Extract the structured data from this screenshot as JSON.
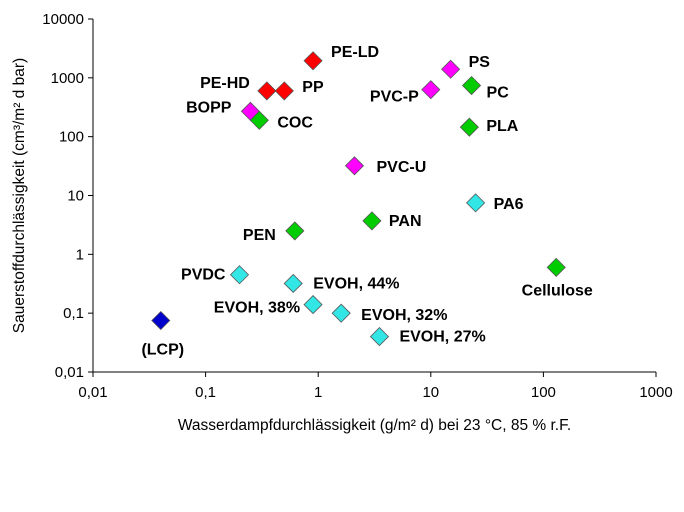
{
  "chart_data": {
    "type": "scatter",
    "xlabel": "Wasserdampfdurchlässigkeit (g/m² d) bei 23 °C, 85 % r.F.",
    "ylabel": "Sauerstoffdurchlässigkeit (cm³/m² d bar)",
    "x_scale": "log",
    "y_scale": "log",
    "xlim": [
      0.01,
      1000
    ],
    "ylim": [
      0.01,
      10000
    ],
    "grid": false,
    "x_ticks": [
      "0,01",
      "0,1",
      "1",
      "10",
      "100",
      "1000"
    ],
    "y_ticks": [
      "0,01",
      "0,1",
      "1",
      "10",
      "100",
      "1000",
      "10000"
    ],
    "colors": {
      "red": "#ff0000",
      "magenta": "#ff00ff",
      "green": "#00cc00",
      "cyan": "#33e6e6",
      "blue": "#0000cc"
    },
    "points": [
      {
        "label": "PE-LD",
        "x": 0.9,
        "y": 1950,
        "color": "red"
      },
      {
        "label": "PE-HD",
        "x": 0.35,
        "y": 600,
        "color": "red"
      },
      {
        "label": "PP",
        "x": 0.5,
        "y": 600,
        "color": "red"
      },
      {
        "label": "BOPP",
        "x": 0.25,
        "y": 270,
        "color": "magenta"
      },
      {
        "label": "COC",
        "x": 0.3,
        "y": 190,
        "color": "green"
      },
      {
        "label": "PS",
        "x": 15,
        "y": 1400,
        "color": "magenta"
      },
      {
        "label": "PVC-P",
        "x": 10,
        "y": 630,
        "color": "magenta"
      },
      {
        "label": "PC",
        "x": 23,
        "y": 740,
        "color": "green"
      },
      {
        "label": "PLA",
        "x": 22,
        "y": 145,
        "color": "green"
      },
      {
        "label": "PVC-U",
        "x": 2.1,
        "y": 32,
        "color": "magenta"
      },
      {
        "label": "PA6",
        "x": 25,
        "y": 7.5,
        "color": "cyan"
      },
      {
        "label": "PAN",
        "x": 3,
        "y": 3.7,
        "color": "green"
      },
      {
        "label": "PEN",
        "x": 0.62,
        "y": 2.5,
        "color": "green"
      },
      {
        "label": "Cellulose",
        "x": 130,
        "y": 0.6,
        "color": "green"
      },
      {
        "label": "PVDC",
        "x": 0.2,
        "y": 0.45,
        "color": "cyan"
      },
      {
        "label": "EVOH, 44%",
        "x": 0.6,
        "y": 0.32,
        "color": "cyan"
      },
      {
        "label": "EVOH, 38%",
        "x": 0.9,
        "y": 0.14,
        "color": "cyan"
      },
      {
        "label": "EVOH, 32%",
        "x": 1.6,
        "y": 0.1,
        "color": "cyan"
      },
      {
        "label": "EVOH, 27%",
        "x": 3.5,
        "y": 0.04,
        "color": "cyan"
      },
      {
        "label": "(LCP)",
        "x": 0.04,
        "y": 0.075,
        "color": "blue"
      }
    ]
  }
}
